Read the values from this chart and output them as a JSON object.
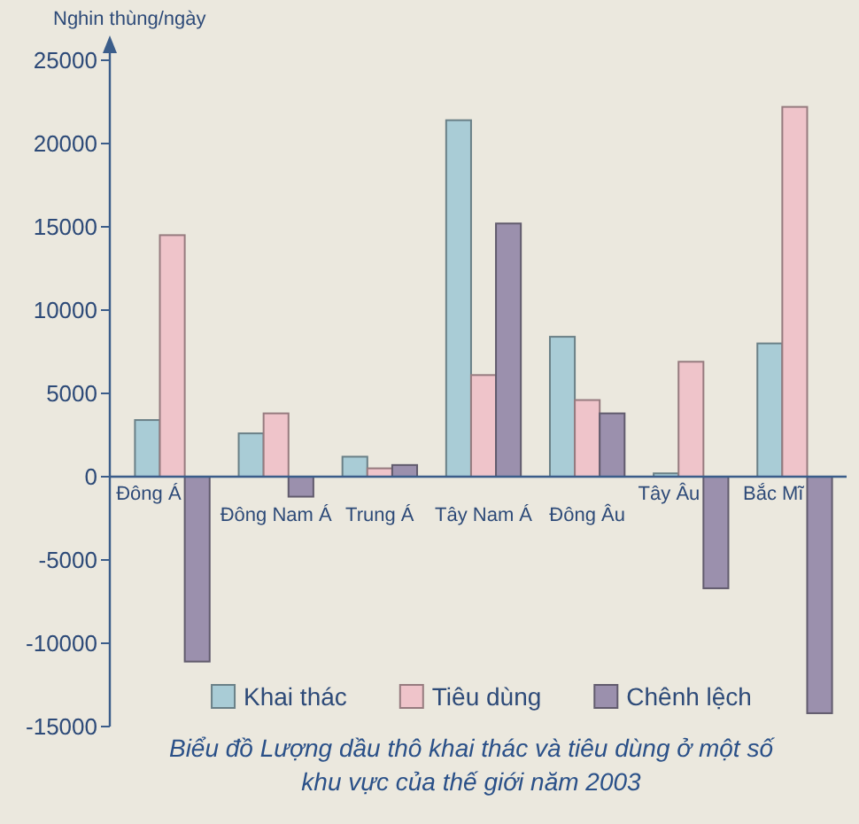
{
  "chart_data": {
    "type": "bar",
    "title": "Biểu đồ Lượng dầu thô khai thác và tiêu dùng ở một số khu vực của thế giới năm 2003",
    "ylabel": "Nghin thùng/ngày",
    "categories": [
      "Đông Á",
      "Đông Nam Á",
      "Trung Á",
      "Tây Nam Á",
      "Đông Âu",
      "Tây Âu",
      "Bắc Mĩ"
    ],
    "series": [
      {
        "name": "Khai thác",
        "color": "#a9ccd6",
        "values": [
          3400,
          2600,
          1200,
          21400,
          8400,
          200,
          8000
        ]
      },
      {
        "name": "Tiêu dùng",
        "color": "#efc4ca",
        "values": [
          14500,
          3800,
          500,
          6100,
          4600,
          6900,
          22200
        ]
      },
      {
        "name": "Chênh lệch",
        "color": "#9b90ad",
        "values": [
          -11100,
          -1200,
          700,
          15200,
          3800,
          -6700,
          -14200
        ]
      }
    ],
    "ylim": [
      -15000,
      25000
    ],
    "yticks": [
      -15000,
      -10000,
      -5000,
      0,
      5000,
      10000,
      15000,
      20000,
      25000
    ],
    "legend": "bottom"
  }
}
